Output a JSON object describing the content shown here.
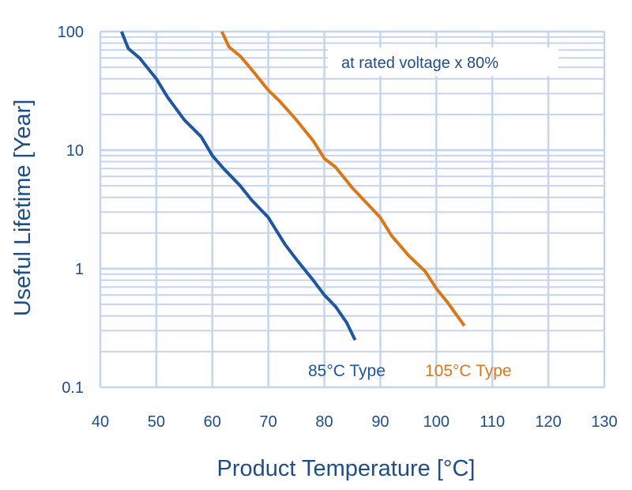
{
  "chart_data": {
    "type": "line",
    "title": "",
    "xlabel": "Product Temperature [°C]",
    "ylabel": "Useful Lifetime [Year]",
    "xlim": [
      40,
      130
    ],
    "ylim": [
      0.1,
      100
    ],
    "yscale": "log",
    "grid": true,
    "xticks": [
      "40",
      "50",
      "60",
      "70",
      "80",
      "90",
      "100",
      "110",
      "120",
      "130"
    ],
    "yticks": [
      "0.1",
      "1",
      "10",
      "100"
    ],
    "annotation": "at rated voltage x 80%",
    "series": [
      {
        "name": "85°C Type",
        "color": "#1f56a0",
        "x": [
          43.8,
          45,
          47,
          50,
          52,
          55,
          58,
          60,
          62,
          65,
          67,
          70,
          73,
          75,
          78,
          80,
          82,
          84,
          85.5
        ],
        "y": [
          100,
          72,
          60,
          40,
          28,
          18,
          13,
          9,
          7,
          5,
          3.8,
          2.7,
          1.6,
          1.2,
          0.8,
          0.6,
          0.48,
          0.35,
          0.25
        ]
      },
      {
        "name": "105°C Type",
        "color": "#d9771b",
        "x": [
          61.7,
          63,
          65,
          67,
          70,
          72,
          75,
          78,
          80,
          82,
          85,
          88,
          90,
          92,
          95,
          98,
          100,
          102,
          105
        ],
        "y": [
          100,
          74,
          62,
          48,
          32,
          26,
          18,
          12,
          8.5,
          7.2,
          4.8,
          3.4,
          2.7,
          1.9,
          1.3,
          0.95,
          0.68,
          0.52,
          0.33
        ]
      }
    ]
  }
}
